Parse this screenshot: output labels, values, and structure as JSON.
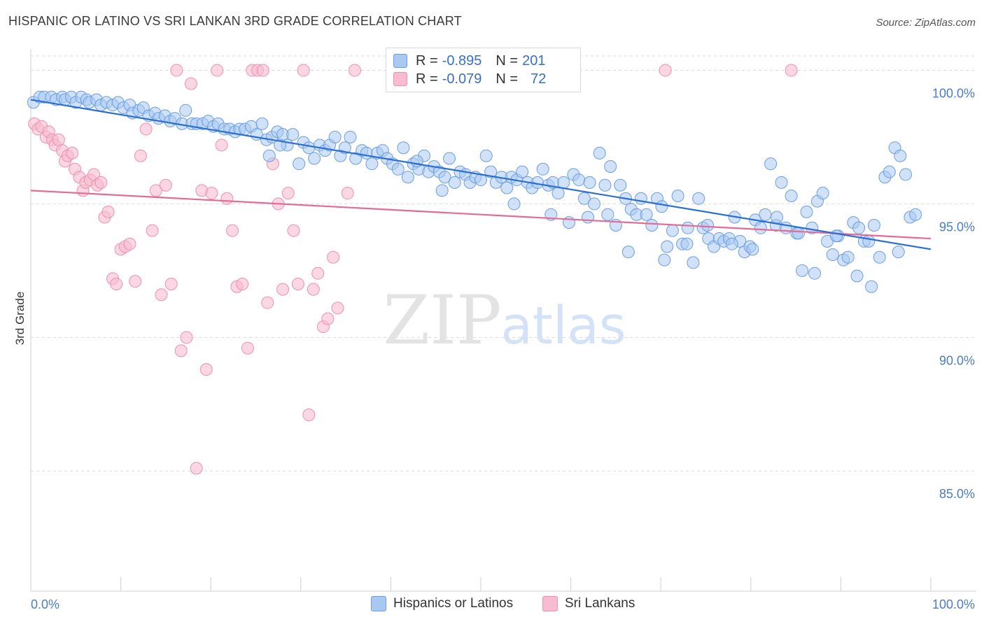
{
  "header": {
    "title": "HISPANIC OR LATINO VS SRI LANKAN 3RD GRADE CORRELATION CHART",
    "source": "Source: ZipAtlas.com"
  },
  "legend_box": {
    "rows": [
      {
        "r_label": "R =",
        "r_value": "-0.895",
        "n_label": "N =",
        "n_value": "201"
      },
      {
        "r_label": "R =",
        "r_value": "-0.079",
        "n_label": "N =",
        "n_value": "72"
      }
    ]
  },
  "watermark": {
    "zip": "ZIP",
    "atlas": "atlas"
  },
  "colors": {
    "blue_fill": "#a9c8f2",
    "blue_stroke": "#6a9fe0",
    "blue_line": "#2b6fd1",
    "pink_fill": "#f7bccf",
    "pink_stroke": "#ee8fae",
    "pink_line": "#e36b96",
    "grid": "#d9d9d9",
    "tick_label": "#4a7cc7"
  },
  "chart_data": {
    "type": "scatter",
    "title": "HISPANIC OR LATINO VS SRI LANKAN 3RD GRADE CORRELATION CHART",
    "xlabel": "",
    "ylabel": "3rd Grade",
    "xlim": [
      0,
      100
    ],
    "ylim": [
      80.5,
      100.8
    ],
    "x_tick_labels": [
      "0.0%",
      "100.0%"
    ],
    "y_ticks": [
      85,
      90,
      95,
      100
    ],
    "y_tick_labels": [
      "85.0%",
      "90.0%",
      "95.0%",
      "100.0%"
    ],
    "grid": true,
    "legend_position": "bottom",
    "series": [
      {
        "name": "Hispanics or Latinos",
        "color": "#a9c8f2",
        "trend": {
          "x": [
            0,
            100
          ],
          "y": [
            98.9,
            93.3
          ]
        },
        "points": [
          [
            0.3,
            98.8
          ],
          [
            1,
            99
          ],
          [
            1.5,
            99
          ],
          [
            2.3,
            99
          ],
          [
            2.8,
            98.9
          ],
          [
            3.5,
            99
          ],
          [
            3.8,
            98.9
          ],
          [
            4.5,
            99
          ],
          [
            5,
            98.8
          ],
          [
            5.6,
            99
          ],
          [
            6.2,
            98.9
          ],
          [
            6.5,
            98.8
          ],
          [
            7.3,
            98.9
          ],
          [
            7.8,
            98.7
          ],
          [
            8.4,
            98.8
          ],
          [
            9.1,
            98.7
          ],
          [
            9.7,
            98.8
          ],
          [
            10.3,
            98.6
          ],
          [
            11,
            98.7
          ],
          [
            11.3,
            98.4
          ],
          [
            12,
            98.5
          ],
          [
            12.5,
            98.6
          ],
          [
            13.1,
            98.3
          ],
          [
            13.8,
            98.4
          ],
          [
            14.2,
            98.2
          ],
          [
            14.9,
            98.3
          ],
          [
            15.5,
            98.1
          ],
          [
            16,
            98.2
          ],
          [
            16.8,
            98
          ],
          [
            17.2,
            98.5
          ],
          [
            17.9,
            98
          ],
          [
            18.4,
            98
          ],
          [
            19.1,
            98
          ],
          [
            19.7,
            98.1
          ],
          [
            20.3,
            97.9
          ],
          [
            20.8,
            98
          ],
          [
            21.5,
            97.8
          ],
          [
            22.1,
            97.8
          ],
          [
            22.7,
            97.7
          ],
          [
            23.2,
            97.8
          ],
          [
            23.8,
            97.8
          ],
          [
            24.5,
            97.9
          ],
          [
            25.1,
            97.6
          ],
          [
            25.7,
            98
          ],
          [
            26.2,
            97.4
          ],
          [
            26.8,
            97.5
          ],
          [
            27.4,
            97.7
          ],
          [
            28,
            97.6
          ],
          [
            28.5,
            97.2
          ],
          [
            29.1,
            97.6
          ],
          [
            29.8,
            96.5
          ],
          [
            30.3,
            97.3
          ],
          [
            30.9,
            97.1
          ],
          [
            31.5,
            96.7
          ],
          [
            32.1,
            97.2
          ],
          [
            32.7,
            97
          ],
          [
            33.2,
            97.2
          ],
          [
            33.8,
            97.5
          ],
          [
            34.4,
            96.8
          ],
          [
            34.9,
            97.1
          ],
          [
            35.5,
            97.5
          ],
          [
            36.1,
            96.7
          ],
          [
            36.8,
            97
          ],
          [
            37.3,
            96.9
          ],
          [
            37.9,
            96.5
          ],
          [
            38.5,
            96.9
          ],
          [
            39.1,
            97
          ],
          [
            39.6,
            96.7
          ],
          [
            40.2,
            96.5
          ],
          [
            40.8,
            96.3
          ],
          [
            41.4,
            97.1
          ],
          [
            41.9,
            96
          ],
          [
            42.5,
            96.5
          ],
          [
            43.1,
            96.3
          ],
          [
            43.7,
            96.8
          ],
          [
            44.2,
            96.2
          ],
          [
            44.8,
            96.4
          ],
          [
            45.4,
            96.2
          ],
          [
            46,
            96
          ],
          [
            46.5,
            96.7
          ],
          [
            47.1,
            95.8
          ],
          [
            47.7,
            96.2
          ],
          [
            48.3,
            96.1
          ],
          [
            48.8,
            95.8
          ],
          [
            49.4,
            96
          ],
          [
            50,
            95.9
          ],
          [
            50.6,
            96.8
          ],
          [
            51.1,
            96.2
          ],
          [
            51.7,
            95.8
          ],
          [
            52.3,
            96
          ],
          [
            52.9,
            95.6
          ],
          [
            53.4,
            96
          ],
          [
            54,
            95.9
          ],
          [
            54.6,
            96.2
          ],
          [
            55.2,
            95.8
          ],
          [
            55.7,
            95.6
          ],
          [
            56.3,
            95.8
          ],
          [
            56.9,
            96.3
          ],
          [
            57.5,
            95.7
          ],
          [
            58,
            95.8
          ],
          [
            58.6,
            95.4
          ],
          [
            59.2,
            95.8
          ],
          [
            59.8,
            94.3
          ],
          [
            60.3,
            96.1
          ],
          [
            60.9,
            95.9
          ],
          [
            61.5,
            95.2
          ],
          [
            62.1,
            95.8
          ],
          [
            62.6,
            95
          ],
          [
            63.2,
            96.9
          ],
          [
            63.8,
            95.7
          ],
          [
            64.4,
            96.4
          ],
          [
            65,
            94.2
          ],
          [
            65.5,
            95.7
          ],
          [
            66.1,
            95.2
          ],
          [
            66.7,
            94.8
          ],
          [
            67.3,
            94.6
          ],
          [
            67.8,
            95.2
          ],
          [
            68.4,
            94.6
          ],
          [
            69,
            94.2
          ],
          [
            69.6,
            95.2
          ],
          [
            70.1,
            94.9
          ],
          [
            70.7,
            93.4
          ],
          [
            71.3,
            94
          ],
          [
            71.9,
            95.3
          ],
          [
            72.4,
            93.5
          ],
          [
            73,
            94.1
          ],
          [
            73.6,
            92.8
          ],
          [
            74.2,
            95.2
          ],
          [
            74.7,
            94.1
          ],
          [
            75.3,
            93.7
          ],
          [
            75.9,
            93.4
          ],
          [
            76.5,
            93.7
          ],
          [
            77,
            93.6
          ],
          [
            77.6,
            93.7
          ],
          [
            78.2,
            94.5
          ],
          [
            78.8,
            93.6
          ],
          [
            79.3,
            93.2
          ],
          [
            79.9,
            93.4
          ],
          [
            80.5,
            94.4
          ],
          [
            81.1,
            94.1
          ],
          [
            81.6,
            94.6
          ],
          [
            82.2,
            96.5
          ],
          [
            82.8,
            94.2
          ],
          [
            83.4,
            95.8
          ],
          [
            83.9,
            94.1
          ],
          [
            84.5,
            95.3
          ],
          [
            85.1,
            93.9
          ],
          [
            85.7,
            92.5
          ],
          [
            86.2,
            94.7
          ],
          [
            86.8,
            94.1
          ],
          [
            87.4,
            95.1
          ],
          [
            88,
            95.4
          ],
          [
            88.5,
            93.6
          ],
          [
            89.1,
            93.1
          ],
          [
            89.7,
            93.8
          ],
          [
            90.3,
            92.9
          ],
          [
            90.8,
            93
          ],
          [
            91.4,
            94.3
          ],
          [
            92,
            94.1
          ],
          [
            92.6,
            93.6
          ],
          [
            93.1,
            93.6
          ],
          [
            93.7,
            94.2
          ],
          [
            94.3,
            93
          ],
          [
            94.9,
            96
          ],
          [
            95.4,
            96.2
          ],
          [
            96,
            97.1
          ],
          [
            96.6,
            96.8
          ],
          [
            97.2,
            96.1
          ],
          [
            97.7,
            94.5
          ],
          [
            98.3,
            94.6
          ],
          [
            26.5,
            96.8
          ],
          [
            27.7,
            97.2
          ],
          [
            42.9,
            96.6
          ],
          [
            45.7,
            95.5
          ],
          [
            53.7,
            95
          ],
          [
            57.8,
            94.6
          ],
          [
            61.9,
            94.5
          ],
          [
            64.1,
            94.6
          ],
          [
            66.4,
            93.2
          ],
          [
            70.4,
            92.9
          ],
          [
            72.9,
            93.5
          ],
          [
            75.2,
            94.2
          ],
          [
            77.9,
            93.5
          ],
          [
            80.2,
            93.3
          ],
          [
            82.9,
            94.5
          ],
          [
            85.3,
            93.9
          ],
          [
            87.1,
            92.4
          ],
          [
            89.5,
            93.8
          ],
          [
            91.8,
            92.3
          ],
          [
            93.4,
            91.9
          ],
          [
            96.4,
            93.2
          ]
        ]
      },
      {
        "name": "Sri Lankans",
        "color": "#f7bccf",
        "trend": {
          "x": [
            0,
            100
          ],
          "y": [
            95.5,
            93.7
          ]
        },
        "points": [
          [
            0.4,
            98
          ],
          [
            0.8,
            97.8
          ],
          [
            1.2,
            97.9
          ],
          [
            1.7,
            97.5
          ],
          [
            2,
            97.7
          ],
          [
            2.4,
            97.4
          ],
          [
            2.7,
            97.2
          ],
          [
            3.1,
            97.4
          ],
          [
            3.5,
            97
          ],
          [
            3.8,
            96.6
          ],
          [
            4.1,
            96.8
          ],
          [
            4.6,
            96.9
          ],
          [
            4.9,
            96.3
          ],
          [
            5.4,
            96
          ],
          [
            5.8,
            95.5
          ],
          [
            6.1,
            95.8
          ],
          [
            6.6,
            95.9
          ],
          [
            7,
            96.1
          ],
          [
            7.4,
            95.7
          ],
          [
            7.8,
            95.8
          ],
          [
            8.2,
            94.5
          ],
          [
            8.6,
            94.7
          ],
          [
            9.1,
            92.2
          ],
          [
            9.5,
            92
          ],
          [
            10,
            93.3
          ],
          [
            10.5,
            93.4
          ],
          [
            11,
            93.5
          ],
          [
            11.6,
            92.1
          ],
          [
            12.2,
            96.8
          ],
          [
            12.8,
            97.8
          ],
          [
            13.5,
            94
          ],
          [
            13.9,
            95.5
          ],
          [
            14.5,
            91.6
          ],
          [
            15,
            95.7
          ],
          [
            15.6,
            92
          ],
          [
            16.2,
            100
          ],
          [
            16.7,
            89.5
          ],
          [
            17.3,
            90
          ],
          [
            17.8,
            99.5
          ],
          [
            18.4,
            85.1
          ],
          [
            19,
            95.5
          ],
          [
            19.5,
            88.8
          ],
          [
            20.1,
            95.4
          ],
          [
            20.7,
            100
          ],
          [
            21.2,
            97.2
          ],
          [
            21.8,
            95.2
          ],
          [
            22.4,
            94
          ],
          [
            22.9,
            91.9
          ],
          [
            23.5,
            92
          ],
          [
            24.1,
            89.6
          ],
          [
            24.6,
            100
          ],
          [
            25.2,
            100
          ],
          [
            25.8,
            100
          ],
          [
            26.3,
            91.3
          ],
          [
            26.9,
            96.5
          ],
          [
            27.5,
            95
          ],
          [
            28,
            91.8
          ],
          [
            28.6,
            95.4
          ],
          [
            29.2,
            94
          ],
          [
            29.7,
            92
          ],
          [
            30.3,
            100
          ],
          [
            30.9,
            87.1
          ],
          [
            31.4,
            91.8
          ],
          [
            31.9,
            92.4
          ],
          [
            32.5,
            90.4
          ],
          [
            33,
            90.7
          ],
          [
            33.6,
            93
          ],
          [
            34.1,
            91.1
          ],
          [
            35.2,
            95.4
          ],
          [
            36,
            100
          ],
          [
            70.5,
            100
          ],
          [
            84.5,
            100
          ]
        ]
      }
    ]
  },
  "bottom_legend": {
    "items": [
      {
        "label": "Hispanics or Latinos"
      },
      {
        "label": "Sri Lankans"
      }
    ]
  }
}
